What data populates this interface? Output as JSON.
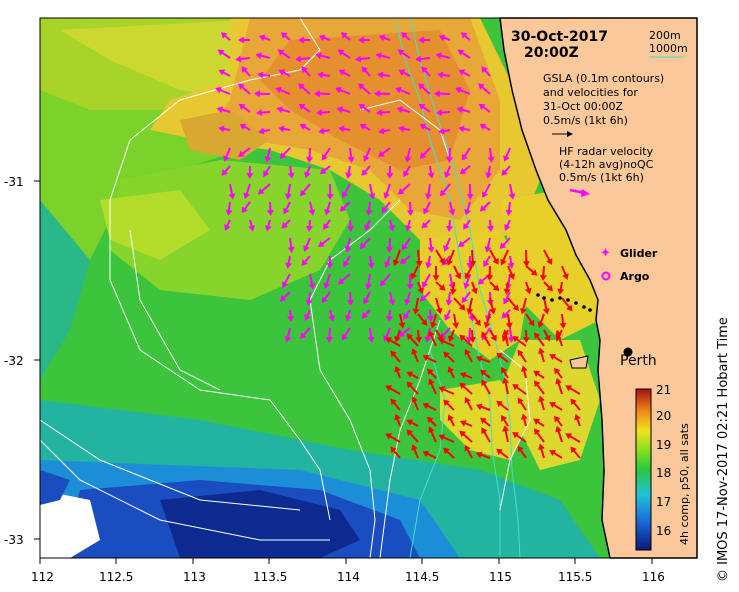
{
  "map": {
    "title_date": "30-Oct-2017",
    "title_time": "20:00Z",
    "legend": {
      "isobath_200": "200m",
      "isobath_1000": "1000m",
      "gsla_line1": "GSLA (0.1m contours)",
      "gsla_line2": "and velocities for",
      "gsla_line3": "31-Oct 00:00Z",
      "gsla_scale": "0.5m/s (1kt 6h)",
      "hf_line1": "HF radar velocity",
      "hf_line2": "(4-12h avg)noQC",
      "hf_scale": "0.5m/s (1kt 6h)",
      "glider": "Glider",
      "argo": "Argo"
    },
    "city": "Perth",
    "x_ticks": [
      "112",
      "112.5",
      "113",
      "113.5",
      "114",
      "114.5",
      "115",
      "115.5",
      "116"
    ],
    "y_ticks": [
      "-31",
      "-32",
      "-33"
    ],
    "colorbar": {
      "label": "4h comp, p50, all sats",
      "ticks": [
        "21",
        "20",
        "19",
        "18",
        "17",
        "16"
      ]
    },
    "credit": "© IMOS 17-Nov-2017 02:21 Hobart Time",
    "colors": {
      "land": "#fbc89a",
      "coast": "#000000",
      "gsla_contour": "#ffffff",
      "isobath": "#40e0d0",
      "gsla_arrow": "#ff00ff",
      "hf_arrow": "#ff0000",
      "glider": "#ff00ff"
    }
  }
}
